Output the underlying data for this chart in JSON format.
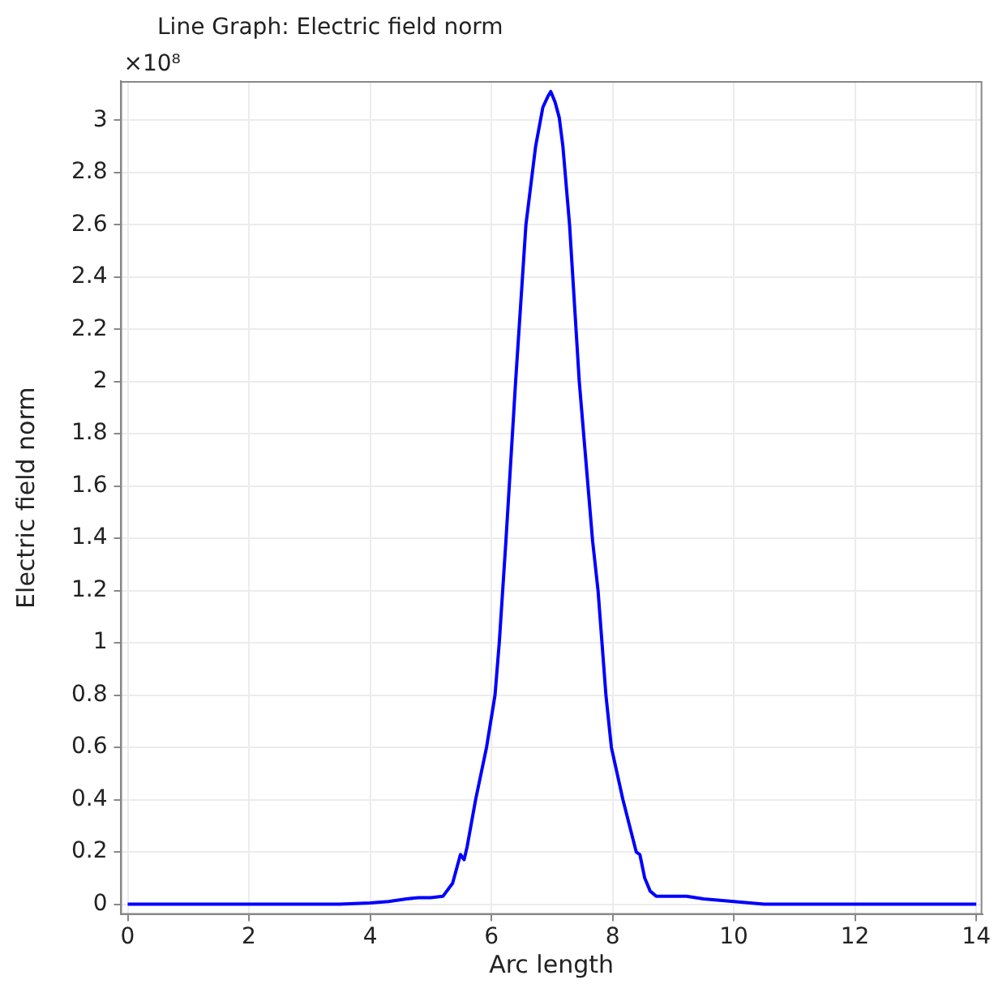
{
  "chart_data": {
    "type": "line",
    "title": "Line Graph: Electric field norm",
    "xlabel": "Arc length",
    "ylabel": "Electric field norm",
    "annotations": [
      "×10⁸"
    ],
    "x": [
      0,
      1,
      2,
      3,
      3.5,
      4,
      4.3,
      4.6,
      4.8,
      5.0,
      5.2,
      5.36,
      5.49,
      5.55,
      5.6,
      5.74,
      5.92,
      6.06,
      6.13,
      6.24,
      6.4,
      6.57,
      6.73,
      6.85,
      6.93,
      6.98,
      7.05,
      7.12,
      7.18,
      7.29,
      7.45,
      7.67,
      7.76,
      7.89,
      7.98,
      8.17,
      8.39,
      8.45,
      8.53,
      8.62,
      8.72,
      9.0,
      9.22,
      9.5,
      10.0,
      10.5,
      11,
      12,
      13,
      14
    ],
    "series": [
      {
        "color": "#0000ff",
        "values": [
          0,
          0,
          0,
          0,
          0,
          0.005,
          0.01,
          0.02,
          0.025,
          0.025,
          0.03,
          0.08,
          0.19,
          0.17,
          0.22,
          0.4,
          0.6,
          0.8,
          1.0,
          1.39,
          2.0,
          2.6,
          2.9,
          3.05,
          3.09,
          3.11,
          3.07,
          3.01,
          2.9,
          2.6,
          2.0,
          1.39,
          1.2,
          0.8,
          0.6,
          0.4,
          0.2,
          0.19,
          0.1,
          0.05,
          0.03,
          0.03,
          0.03,
          0.02,
          0.01,
          0,
          0,
          0,
          0,
          0
        ]
      }
    ],
    "xlim": [
      -0.12,
      14.1
    ],
    "ylim": [
      -0.04,
      3.15
    ],
    "xticks": [
      0,
      2,
      4,
      6,
      8,
      10,
      12,
      14
    ],
    "yticks": [
      0,
      0.2,
      0.4,
      0.6,
      0.8,
      1,
      1.2,
      1.4,
      1.6,
      1.8,
      2,
      2.2,
      2.4,
      2.6,
      2.8,
      3
    ],
    "grid": true,
    "legend": false,
    "marker": "none",
    "line_style": "solid"
  }
}
